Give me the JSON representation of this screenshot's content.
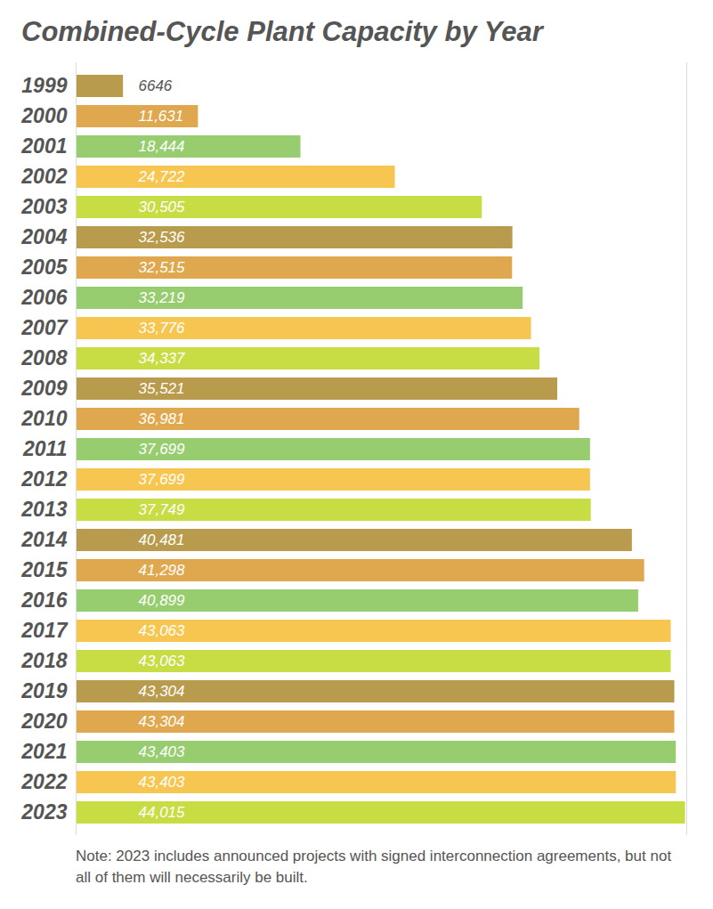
{
  "chart_data": {
    "type": "bar",
    "title": "Combined-Cycle Plant Capacity by Year",
    "orientation": "horizontal",
    "categories": [
      "1999",
      "2000",
      "2001",
      "2002",
      "2003",
      "2004",
      "2005",
      "2006",
      "2007",
      "2008",
      "2009",
      "2010",
      "2011",
      "2012",
      "2013",
      "2014",
      "2015",
      "2016",
      "2017",
      "2018",
      "2019",
      "2020",
      "2021",
      "2022",
      "2023"
    ],
    "values": [
      6646,
      11631,
      18444,
      24722,
      30505,
      32536,
      32515,
      33219,
      33776,
      34337,
      35521,
      36981,
      37699,
      37699,
      37749,
      40481,
      41298,
      40899,
      43063,
      43063,
      43304,
      43304,
      43403,
      43403,
      44015
    ],
    "value_labels": [
      "6646",
      "11,631",
      "18,444",
      "24,722",
      "30,505",
      "32,536",
      "32,515",
      "33,219",
      "33,776",
      "34,337",
      "35,521",
      "36,981",
      "37,699",
      "37,699",
      "37,749",
      "40,481",
      "41,298",
      "40,899",
      "43,063",
      "43,063",
      "43,304",
      "43,304",
      "43,403",
      "43,403",
      "44,015"
    ],
    "colors": [
      "#b89b4c",
      "#e0a84e",
      "#97cd6e",
      "#f7c650",
      "#c8dc44",
      "#b89b4c",
      "#e0a84e",
      "#97cd6e",
      "#f7c650",
      "#c8dc44",
      "#b89b4c",
      "#e0a84e",
      "#97cd6e",
      "#f7c650",
      "#c8dc44",
      "#b89b4c",
      "#e0a84e",
      "#97cd6e",
      "#f7c650",
      "#c8dc44",
      "#b89b4c",
      "#e0a84e",
      "#97cd6e",
      "#f7c650",
      "#c8dc44"
    ],
    "xlim": [
      3500,
      44100
    ],
    "xticks": [],
    "data_labels": true,
    "tick_labels": "y",
    "grid": false,
    "annotations": [
      "Note: 2023 includes announced projects with signed interconnection agreements, but not all of them will necessarily be built."
    ]
  }
}
